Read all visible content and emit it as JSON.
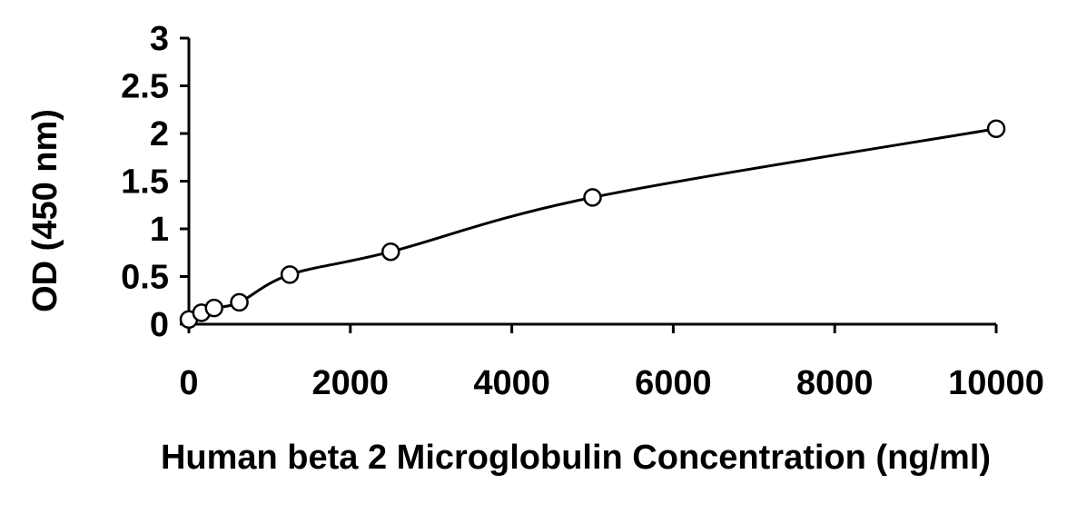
{
  "chart_data": {
    "type": "scatter",
    "title": "",
    "xlabel": "Human beta 2 Microglobulin Concentration (ng/ml)",
    "ylabel": "OD (450 nm)",
    "xlim": [
      0,
      10000
    ],
    "ylim": [
      0,
      3
    ],
    "xticks": [
      "0",
      "2000",
      "4000",
      "6000",
      "8000",
      "10000"
    ],
    "yticks": [
      "0",
      "0.5",
      "1",
      "1.5",
      "2",
      "2.5",
      "3"
    ],
    "grid": false,
    "legend": "none",
    "marker": "open-circle",
    "fit_line": "smooth curve through points",
    "series": [
      {
        "x": [
          0,
          156,
          312,
          625,
          1250,
          2500,
          5000,
          10000
        ],
        "y": [
          0.05,
          0.12,
          0.17,
          0.23,
          0.52,
          0.76,
          1.33,
          2.05
        ]
      }
    ],
    "colors": {
      "axis": "#000000",
      "marker_stroke": "#000000",
      "marker_fill": "#ffffff",
      "line": "#000000"
    }
  }
}
